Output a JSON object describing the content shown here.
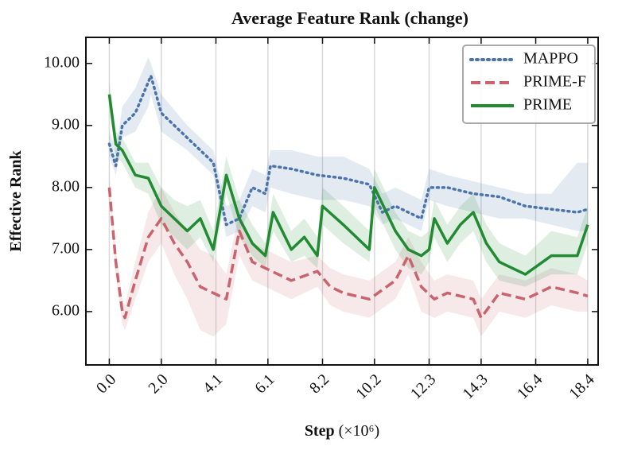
{
  "chart_data": {
    "type": "line",
    "title": "Average Feature Rank (change)",
    "xlabel": "Step",
    "xlabel_unit": "(×10⁶)",
    "ylabel": "Effective Rank",
    "xlim": [
      -0.9,
      18.8
    ],
    "ylim": [
      5.14,
      10.42
    ],
    "xticks": [
      {
        "value": 0,
        "label": "0.0"
      },
      {
        "value": 2,
        "label": "2.0"
      },
      4.1,
      6.1,
      8.2,
      10.2,
      12.3,
      14.3,
      16.4,
      18.4
    ],
    "yticks": [
      {
        "value": 6,
        "label": "6.00"
      },
      {
        "value": 7,
        "label": "7.00"
      },
      {
        "value": 8,
        "label": "8.00"
      },
      {
        "value": 9,
        "label": "9.00"
      },
      {
        "value": 10,
        "label": "10.00"
      }
    ],
    "grid": "x",
    "legend": "upper right",
    "series": [
      {
        "name": "MAPPO",
        "color": "#4a74aa",
        "dash": "dotted",
        "x": [
          0,
          0.25,
          0.5,
          1,
          1.5,
          1.6,
          2,
          3,
          3.5,
          4,
          4.5,
          5,
          5.5,
          6,
          6.2,
          7,
          8,
          9,
          10,
          10.5,
          11,
          12,
          12.3,
          13,
          14,
          15,
          16,
          17,
          18,
          18.4
        ],
        "values": [
          8.7,
          8.35,
          9.0,
          9.2,
          9.7,
          9.8,
          9.2,
          8.8,
          8.6,
          8.4,
          7.4,
          7.5,
          8.0,
          7.9,
          8.35,
          8.3,
          8.2,
          8.15,
          8.05,
          7.6,
          7.7,
          7.5,
          8.0,
          8.0,
          7.9,
          7.85,
          7.7,
          7.65,
          7.6,
          7.65
        ],
        "lower": [
          8.5,
          8.2,
          8.8,
          8.9,
          9.3,
          9.5,
          8.9,
          8.6,
          8.4,
          8.2,
          7.2,
          7.3,
          7.7,
          7.6,
          8.0,
          7.9,
          7.8,
          7.8,
          7.7,
          7.4,
          7.5,
          7.3,
          7.8,
          7.7,
          7.6,
          7.5,
          7.5,
          7.4,
          7.3,
          7.3
        ],
        "upper": [
          8.9,
          8.6,
          9.3,
          9.6,
          10.1,
          10.0,
          9.5,
          9.0,
          8.8,
          8.6,
          7.7,
          7.8,
          8.3,
          8.2,
          8.6,
          8.6,
          8.5,
          8.5,
          8.3,
          7.9,
          8.0,
          7.8,
          8.3,
          8.2,
          8.1,
          8.0,
          7.9,
          7.9,
          8.4,
          8.4
        ]
      },
      {
        "name": "PRIME-F",
        "color": "#c9646f",
        "dash": "dashed",
        "x": [
          0,
          0.25,
          0.5,
          0.6,
          1,
          1.5,
          2,
          2.5,
          3,
          3.5,
          4,
          4.5,
          5,
          5.5,
          6,
          7,
          8,
          8.5,
          9,
          10,
          11,
          11.5,
          12,
          12.5,
          13,
          14,
          14.3,
          15,
          16,
          17,
          18,
          18.4
        ],
        "values": [
          8.0,
          6.8,
          6.0,
          5.9,
          6.5,
          7.2,
          7.5,
          7.1,
          6.8,
          6.4,
          6.3,
          6.2,
          7.3,
          6.8,
          6.7,
          6.5,
          6.65,
          6.4,
          6.3,
          6.2,
          6.5,
          6.9,
          6.4,
          6.2,
          6.3,
          6.2,
          5.9,
          6.3,
          6.2,
          6.4,
          6.3,
          6.25
        ],
        "lower": [
          7.8,
          6.6,
          5.8,
          5.7,
          6.2,
          6.8,
          7.1,
          6.6,
          6.2,
          5.7,
          5.6,
          5.8,
          6.9,
          6.5,
          6.4,
          6.2,
          6.4,
          6.1,
          6.0,
          5.9,
          6.2,
          6.6,
          6.0,
          5.9,
          6.0,
          5.9,
          5.6,
          6.0,
          5.9,
          6.1,
          6.0,
          6.0
        ],
        "upper": [
          8.2,
          7.0,
          6.2,
          6.1,
          6.8,
          7.6,
          8.0,
          7.6,
          7.3,
          7.0,
          6.9,
          6.6,
          7.6,
          7.1,
          7.0,
          6.8,
          6.9,
          6.7,
          6.6,
          6.5,
          6.8,
          7.2,
          6.8,
          6.5,
          6.6,
          6.5,
          6.2,
          6.6,
          6.5,
          6.7,
          6.6,
          6.5
        ]
      },
      {
        "name": "PRIME",
        "color": "#228a32",
        "dash": "solid",
        "x": [
          0,
          0.25,
          0.5,
          1,
          1.5,
          2,
          2.5,
          3,
          3.5,
          4,
          4.5,
          5,
          5.5,
          6,
          6.3,
          7,
          7.5,
          8,
          8.2,
          9,
          10,
          10.2,
          11,
          11.5,
          12,
          12.3,
          12.5,
          13,
          13.5,
          14,
          14.5,
          15,
          16,
          17,
          18,
          18.4
        ],
        "values": [
          9.5,
          8.7,
          8.6,
          8.2,
          8.15,
          7.7,
          7.5,
          7.3,
          7.5,
          7.0,
          8.2,
          7.5,
          7.1,
          6.9,
          7.6,
          7.0,
          7.2,
          6.9,
          7.7,
          7.4,
          7.0,
          8.0,
          7.3,
          7.0,
          6.9,
          7.0,
          7.5,
          7.1,
          7.4,
          7.6,
          7.1,
          6.8,
          6.6,
          6.9,
          6.9,
          7.4
        ],
        "lower": [
          9.3,
          8.5,
          8.4,
          8.0,
          7.9,
          7.4,
          7.2,
          7.0,
          7.2,
          6.8,
          7.9,
          7.2,
          6.9,
          6.7,
          7.3,
          6.8,
          6.9,
          6.7,
          7.4,
          7.1,
          6.8,
          7.7,
          7.0,
          6.7,
          6.6,
          6.8,
          7.2,
          6.8,
          7.1,
          7.3,
          6.8,
          6.5,
          6.4,
          6.6,
          6.6,
          7.1
        ],
        "upper": [
          9.7,
          8.9,
          8.8,
          8.4,
          8.4,
          8.0,
          7.8,
          7.7,
          7.8,
          7.3,
          8.5,
          7.8,
          7.4,
          7.1,
          7.9,
          7.3,
          7.5,
          7.2,
          8.0,
          7.7,
          7.3,
          8.3,
          7.6,
          7.3,
          7.2,
          7.3,
          7.8,
          7.4,
          7.7,
          7.9,
          7.4,
          7.1,
          6.9,
          7.3,
          7.2,
          7.7
        ]
      }
    ]
  }
}
